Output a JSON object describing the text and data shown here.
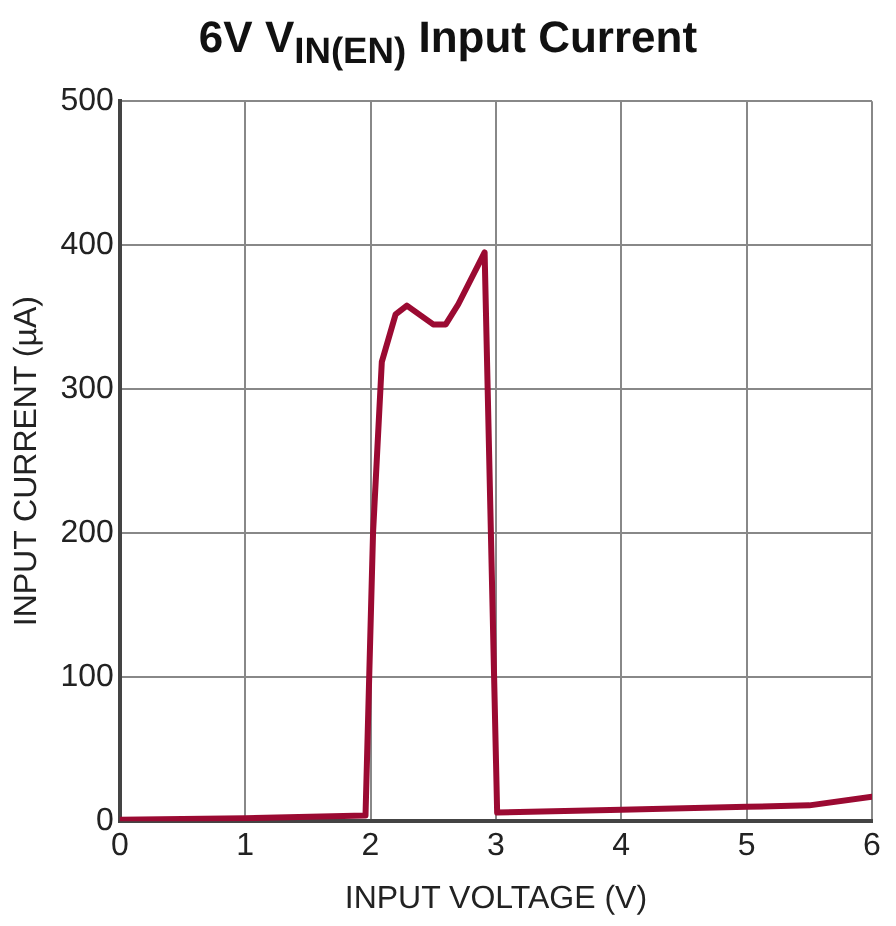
{
  "chart_data": {
    "type": "line",
    "title": "6V V$_{IN(EN)}$ Input Current",
    "xlabel": "INPUT VOLTAGE (V)",
    "ylabel": "INPUT CURRENT (µA)",
    "x": [
      0,
      1,
      1.96,
      2.02,
      2.09,
      2.2,
      2.29,
      2.5,
      2.6,
      2.7,
      2.91,
      3.01,
      4,
      5,
      5.5,
      6
    ],
    "series": [
      {
        "color": "#9b0a32",
        "values": [
          1,
          2,
          4,
          200,
          319,
          352,
          358,
          345,
          345,
          359,
          395,
          6,
          8,
          10,
          11,
          17
        ]
      }
    ],
    "xlim": [
      0,
      6
    ],
    "xticks": [
      0,
      1,
      2,
      3,
      4,
      5,
      6
    ],
    "ylim": [
      0,
      500
    ],
    "yticks": [
      0,
      100,
      200,
      300,
      400,
      500
    ],
    "grid": true,
    "legend": false,
    "marker": "none",
    "line_style": "solid"
  }
}
